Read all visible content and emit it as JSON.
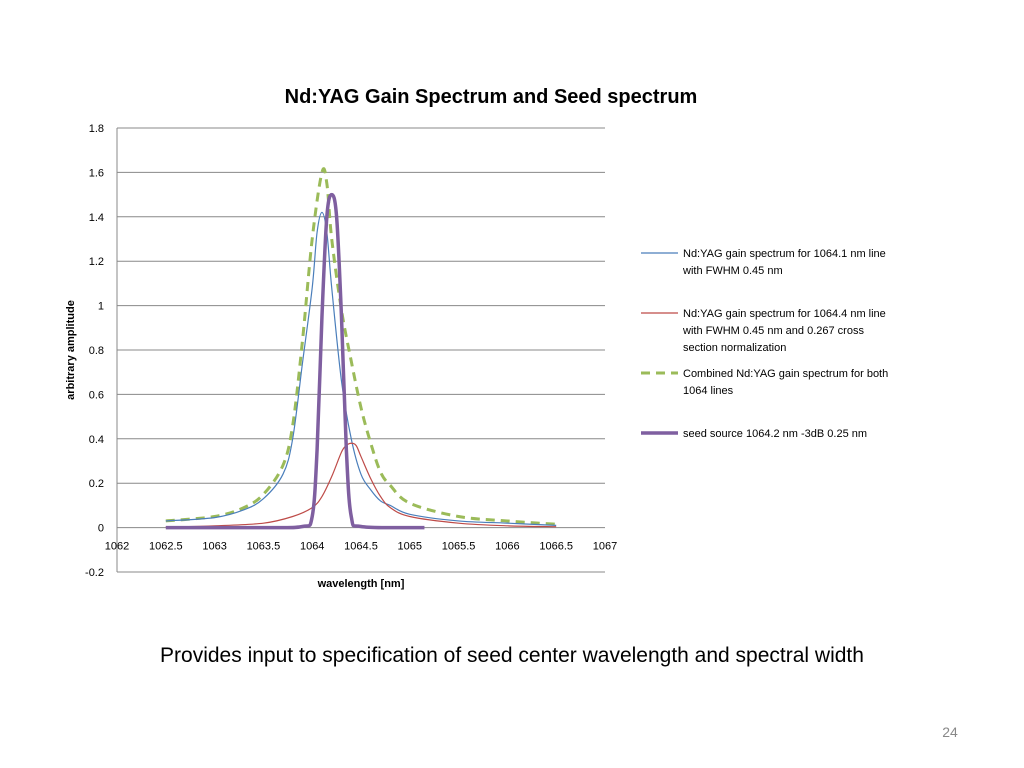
{
  "slide": {
    "caption": "Provides input to specification of seed center wavelength and spectral width",
    "page_number": "24"
  },
  "chart_data": {
    "type": "line",
    "title": "Nd:YAG Gain Spectrum and Seed spectrum",
    "xlabel": "wavelength [nm]",
    "ylabel": "arbitrary amplitude",
    "xlim": [
      1062,
      1067
    ],
    "ylim": [
      -0.2,
      1.8
    ],
    "x_ticks": [
      "1062",
      "1062.5",
      "1063",
      "1063.5",
      "1064",
      "1064.5",
      "1065",
      "1065.5",
      "1066",
      "1066.5",
      "1067"
    ],
    "y_ticks": [
      "-0.2",
      "0",
      "0.2",
      "0.4",
      "0.6",
      "0.8",
      "1",
      "1.2",
      "1.4",
      "1.6",
      "1.8"
    ],
    "grid": "horizontal",
    "legend_position": "right",
    "series": [
      {
        "name": "Nd:YAG gain spectrum for 1064.1 nm line with FWHM 0.45 nm",
        "color": "#4a7ebb",
        "style": "solid-thin",
        "x": [
          1062.5,
          1063.0,
          1063.3,
          1063.5,
          1063.7,
          1063.8,
          1063.9,
          1064.0,
          1064.05,
          1064.1,
          1064.15,
          1064.2,
          1064.3,
          1064.4,
          1064.5,
          1064.6,
          1064.7,
          1064.8,
          1065.0,
          1065.5,
          1066.0,
          1066.5
        ],
        "y": [
          0.03,
          0.045,
          0.08,
          0.13,
          0.24,
          0.4,
          0.74,
          1.08,
          1.33,
          1.42,
          1.33,
          1.08,
          0.66,
          0.4,
          0.24,
          0.17,
          0.12,
          0.1,
          0.06,
          0.03,
          0.02,
          0.01
        ]
      },
      {
        "name": "Nd:YAG gain spectrum for 1064.4 nm line with FWHM 0.45 nm and 0.267 cross section normalization",
        "color": "#be4b48",
        "style": "solid-thin",
        "x": [
          1062.5,
          1063.0,
          1063.5,
          1063.8,
          1064.0,
          1064.1,
          1064.2,
          1064.3,
          1064.35,
          1064.4,
          1064.45,
          1064.5,
          1064.6,
          1064.7,
          1064.8,
          1065.0,
          1065.5,
          1066.0,
          1066.5
        ],
        "y": [
          0.002,
          0.008,
          0.02,
          0.05,
          0.09,
          0.14,
          0.23,
          0.34,
          0.37,
          0.38,
          0.37,
          0.32,
          0.22,
          0.14,
          0.09,
          0.05,
          0.02,
          0.008,
          0.004
        ]
      },
      {
        "name": "Combined Nd:YAG gain spectrum for both 1064 lines",
        "color": "#9bbb59",
        "style": "dashed-thick",
        "x": [
          1062.5,
          1063.0,
          1063.3,
          1063.5,
          1063.7,
          1063.8,
          1063.9,
          1064.0,
          1064.1,
          1064.15,
          1064.2,
          1064.3,
          1064.4,
          1064.5,
          1064.6,
          1064.7,
          1064.8,
          1065.0,
          1065.5,
          1066.0,
          1066.5
        ],
        "y": [
          0.03,
          0.05,
          0.09,
          0.15,
          0.28,
          0.46,
          0.84,
          1.3,
          1.6,
          1.55,
          1.3,
          0.98,
          0.75,
          0.54,
          0.38,
          0.25,
          0.19,
          0.11,
          0.05,
          0.03,
          0.015
        ]
      },
      {
        "name": "seed source 1064.2 nm -3dB 0.25 nm",
        "color": "#7f5fa0",
        "style": "solid-thick",
        "x": [
          1062.5,
          1063.5,
          1063.9,
          1064.0,
          1064.05,
          1064.1,
          1064.15,
          1064.2,
          1064.25,
          1064.3,
          1064.35,
          1064.4,
          1064.5,
          1065.0,
          1065.15
        ],
        "y": [
          0.0,
          0.0,
          0.005,
          0.05,
          0.35,
          0.95,
          1.4,
          1.5,
          1.4,
          0.95,
          0.35,
          0.05,
          0.005,
          0.0,
          0.0
        ]
      }
    ]
  }
}
